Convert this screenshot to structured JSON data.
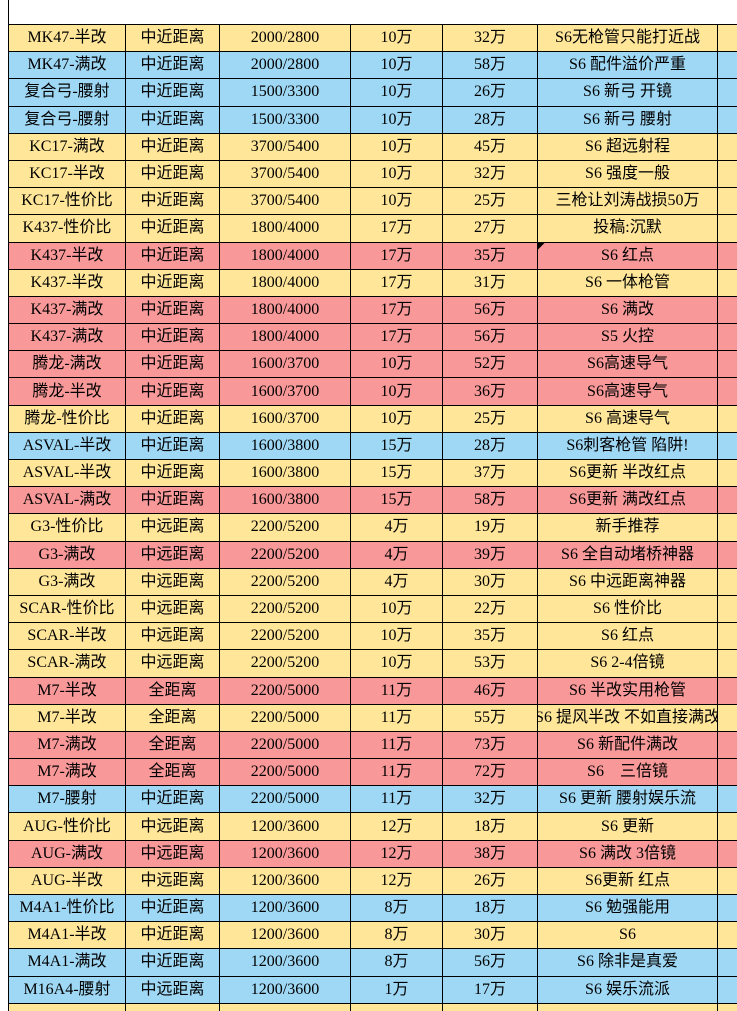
{
  "table": {
    "colors": {
      "yellow": "#FFE699",
      "blue": "#9FD8F5",
      "pink": "#F89898",
      "white": "#FFFFFF"
    },
    "columns": [
      "weapon",
      "range",
      "stats",
      "cost_base",
      "cost_total",
      "note"
    ],
    "rows": [
      {
        "weapon": "MK47-半改",
        "range": "中近距离",
        "stats": "2000/2800",
        "cost_base": "10万",
        "cost_total": "32万",
        "note": "S6无枪管只能打近战",
        "color": "yellow"
      },
      {
        "weapon": "MK47-满改",
        "range": "中近距离",
        "stats": "2000/2800",
        "cost_base": "10万",
        "cost_total": "58万",
        "note": "S6 配件溢价严重",
        "color": "blue"
      },
      {
        "weapon": "复合弓-腰射",
        "range": "中近距离",
        "stats": "1500/3300",
        "cost_base": "10万",
        "cost_total": "26万",
        "note": "S6 新弓 开镜",
        "color": "blue"
      },
      {
        "weapon": "复合弓-腰射",
        "range": "中近距离",
        "stats": "1500/3300",
        "cost_base": "10万",
        "cost_total": "28万",
        "note": "S6 新弓 腰射",
        "color": "blue"
      },
      {
        "weapon": "KC17-满改",
        "range": "中近距离",
        "stats": "3700/5400",
        "cost_base": "10万",
        "cost_total": "45万",
        "note": "S6 超远射程",
        "color": "yellow"
      },
      {
        "weapon": "KC17-半改",
        "range": "中近距离",
        "stats": "3700/5400",
        "cost_base": "10万",
        "cost_total": "32万",
        "note": "S6 强度一般",
        "color": "yellow"
      },
      {
        "weapon": "KC17-性价比",
        "range": "中近距离",
        "stats": "3700/5400",
        "cost_base": "10万",
        "cost_total": "25万",
        "note": "三枪让刘涛战损50万",
        "color": "yellow"
      },
      {
        "weapon": "K437-性价比",
        "range": "中近距离",
        "stats": "1800/4000",
        "cost_base": "17万",
        "cost_total": "27万",
        "note": "投稿:沉默",
        "color": "yellow"
      },
      {
        "weapon": "K437-半改",
        "range": "中近距离",
        "stats": "1800/4000",
        "cost_base": "17万",
        "cost_total": "35万",
        "note": "S6 红点",
        "color": "pink",
        "marker": true
      },
      {
        "weapon": "K437-半改",
        "range": "中近距离",
        "stats": "1800/4000",
        "cost_base": "17万",
        "cost_total": "31万",
        "note": "S6 一体枪管",
        "color": "yellow"
      },
      {
        "weapon": "K437-满改",
        "range": "中近距离",
        "stats": "1800/4000",
        "cost_base": "17万",
        "cost_total": "56万",
        "note": "S6 满改",
        "color": "pink"
      },
      {
        "weapon": "K437-满改",
        "range": "中近距离",
        "stats": "1800/4000",
        "cost_base": "17万",
        "cost_total": "56万",
        "note": "S5 火控",
        "color": "pink"
      },
      {
        "weapon": "腾龙-满改",
        "range": "中近距离",
        "stats": "1600/3700",
        "cost_base": "10万",
        "cost_total": "52万",
        "note": "S6高速导气",
        "color": "pink"
      },
      {
        "weapon": "腾龙-半改",
        "range": "中近距离",
        "stats": "1600/3700",
        "cost_base": "10万",
        "cost_total": "36万",
        "note": "S6高速导气",
        "color": "pink"
      },
      {
        "weapon": "腾龙-性价比",
        "range": "中近距离",
        "stats": "1600/3700",
        "cost_base": "10万",
        "cost_total": "25万",
        "note": "S6 高速导气",
        "color": "yellow"
      },
      {
        "weapon": "ASVAL-半改",
        "range": "中近距离",
        "stats": "1600/3800",
        "cost_base": "15万",
        "cost_total": "28万",
        "note": "S6刺客枪管 陷阱!",
        "color": "blue"
      },
      {
        "weapon": "ASVAL-半改",
        "range": "中近距离",
        "stats": "1600/3800",
        "cost_base": "15万",
        "cost_total": "37万",
        "note": "S6更新 半改红点",
        "color": "yellow"
      },
      {
        "weapon": "ASVAL-满改",
        "range": "中近距离",
        "stats": "1600/3800",
        "cost_base": "15万",
        "cost_total": "58万",
        "note": "S6更新 满改红点",
        "color": "pink"
      },
      {
        "weapon": "G3-性价比",
        "range": "中远距离",
        "stats": "2200/5200",
        "cost_base": "4万",
        "cost_total": "19万",
        "note": "新手推荐",
        "color": "yellow"
      },
      {
        "weapon": "G3-满改",
        "range": "中远距离",
        "stats": "2200/5200",
        "cost_base": "4万",
        "cost_total": "39万",
        "note": "S6 全自动堵桥神器",
        "color": "pink"
      },
      {
        "weapon": "G3-满改",
        "range": "中远距离",
        "stats": "2200/5200",
        "cost_base": "4万",
        "cost_total": "30万",
        "note": "S6 中远距离神器",
        "color": "yellow"
      },
      {
        "weapon": "SCAR-性价比",
        "range": "中远距离",
        "stats": "2200/5200",
        "cost_base": "10万",
        "cost_total": "22万",
        "note": "S6 性价比",
        "color": "yellow"
      },
      {
        "weapon": "SCAR-半改",
        "range": "中远距离",
        "stats": "2200/5200",
        "cost_base": "10万",
        "cost_total": "35万",
        "note": "S6 红点",
        "color": "yellow"
      },
      {
        "weapon": "SCAR-满改",
        "range": "中远距离",
        "stats": "2200/5200",
        "cost_base": "10万",
        "cost_total": "53万",
        "note": "S6 2-4倍镜",
        "color": "yellow"
      },
      {
        "weapon": "M7-半改",
        "range": "全距离",
        "stats": "2200/5000",
        "cost_base": "11万",
        "cost_total": "46万",
        "note": "S6 半改实用枪管",
        "color": "pink"
      },
      {
        "weapon": "M7-半改",
        "range": "全距离",
        "stats": "2200/5000",
        "cost_base": "11万",
        "cost_total": "55万",
        "note": "S6 提风半改 不如直接满改",
        "color": "yellow"
      },
      {
        "weapon": "M7-满改",
        "range": "全距离",
        "stats": "2200/5000",
        "cost_base": "11万",
        "cost_total": "73万",
        "note": "S6 新配件满改",
        "color": "pink"
      },
      {
        "weapon": "M7-满改",
        "range": "全距离",
        "stats": "2200/5000",
        "cost_base": "11万",
        "cost_total": "72万",
        "note": "S6　三倍镜",
        "color": "pink"
      },
      {
        "weapon": "M7-腰射",
        "range": "中近距离",
        "stats": "2200/5000",
        "cost_base": "11万",
        "cost_total": "32万",
        "note": "S6 更新 腰射娱乐流",
        "color": "blue"
      },
      {
        "weapon": "AUG-性价比",
        "range": "中远距离",
        "stats": "1200/3600",
        "cost_base": "12万",
        "cost_total": "18万",
        "note": "S6 更新",
        "color": "yellow"
      },
      {
        "weapon": "AUG-满改",
        "range": "中远距离",
        "stats": "1200/3600",
        "cost_base": "12万",
        "cost_total": "38万",
        "note": "S6 满改 3倍镜",
        "color": "pink"
      },
      {
        "weapon": "AUG-半改",
        "range": "中远距离",
        "stats": "1200/3600",
        "cost_base": "12万",
        "cost_total": "26万",
        "note": "S6更新 红点",
        "color": "yellow"
      },
      {
        "weapon": "M4A1-性价比",
        "range": "中近距离",
        "stats": "1200/3600",
        "cost_base": "8万",
        "cost_total": "18万",
        "note": "S6 勉强能用",
        "color": "blue"
      },
      {
        "weapon": "M4A1-半改",
        "range": "中近距离",
        "stats": "1200/3600",
        "cost_base": "8万",
        "cost_total": "30万",
        "note": "S6",
        "color": "yellow"
      },
      {
        "weapon": "M4A1-满改",
        "range": "中近距离",
        "stats": "1200/3600",
        "cost_base": "8万",
        "cost_total": "56万",
        "note": "S6 除非是真爱",
        "color": "blue"
      },
      {
        "weapon": "M16A4-腰射",
        "range": "中远距离",
        "stats": "1200/3600",
        "cost_base": "1万",
        "cost_total": "17万",
        "note": "S6 娱乐流派",
        "color": "blue"
      }
    ],
    "partial_bottom_color": "yellow"
  }
}
